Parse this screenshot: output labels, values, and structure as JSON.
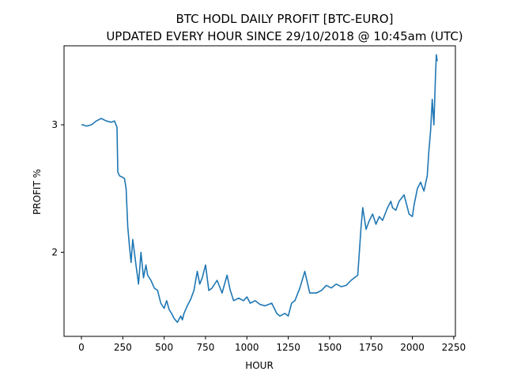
{
  "chart_data": {
    "type": "line",
    "title": "BTC HODL DAILY PROFIT [BTC-EURO]",
    "subtitle": "UPDATED EVERY HOUR SINCE 29/10/2018 @ 10:45am (UTC)",
    "xlabel": "HOUR",
    "ylabel": "PROFIT %",
    "xlim": [
      -105,
      2260
    ],
    "ylim": [
      1.34,
      3.62
    ],
    "xticks": [
      0,
      250,
      500,
      750,
      1000,
      1250,
      1500,
      1750,
      2000,
      2250
    ],
    "xtick_labels": [
      "0",
      "250",
      "500",
      "750",
      "1000",
      "1250",
      "1500",
      "1750",
      "2000",
      "2250"
    ],
    "yticks": [
      2,
      3
    ],
    "ytick_labels": [
      "2",
      "3"
    ],
    "grid": false,
    "line_color": "#1f77b4",
    "series": [
      {
        "x": [
          0,
          10,
          30,
          60,
          90,
          120,
          150,
          180,
          200,
          215,
          220,
          230,
          245,
          260,
          270,
          280,
          290,
          300,
          310,
          320,
          330,
          345,
          360,
          375,
          390,
          400,
          420,
          440,
          460,
          480,
          500,
          515,
          530,
          545,
          560,
          580,
          600,
          610,
          620,
          640,
          660,
          680,
          700,
          715,
          730,
          750,
          770,
          790,
          820,
          850,
          880,
          900,
          920,
          950,
          980,
          1000,
          1020,
          1050,
          1080,
          1110,
          1150,
          1180,
          1200,
          1230,
          1250,
          1270,
          1290,
          1320,
          1350,
          1380,
          1420,
          1450,
          1480,
          1510,
          1540,
          1570,
          1600,
          1630,
          1650,
          1670,
          1690,
          1700,
          1720,
          1740,
          1760,
          1780,
          1800,
          1820,
          1850,
          1870,
          1880,
          1900,
          1920,
          1950,
          1980,
          2000,
          2010,
          2030,
          2050,
          2070,
          2090,
          2100,
          2110,
          2120,
          2130,
          2140,
          2145,
          2150
        ],
        "y": [
          3.0,
          3.0,
          2.99,
          3.0,
          3.03,
          3.05,
          3.03,
          3.02,
          3.03,
          2.98,
          2.63,
          2.6,
          2.59,
          2.58,
          2.5,
          2.2,
          2.05,
          1.92,
          2.1,
          2.0,
          1.9,
          1.75,
          2.0,
          1.8,
          1.9,
          1.82,
          1.78,
          1.72,
          1.7,
          1.6,
          1.56,
          1.62,
          1.55,
          1.52,
          1.48,
          1.45,
          1.5,
          1.47,
          1.52,
          1.58,
          1.63,
          1.7,
          1.85,
          1.75,
          1.8,
          1.9,
          1.7,
          1.72,
          1.78,
          1.68,
          1.82,
          1.7,
          1.62,
          1.64,
          1.62,
          1.65,
          1.6,
          1.62,
          1.59,
          1.58,
          1.6,
          1.52,
          1.5,
          1.52,
          1.5,
          1.6,
          1.62,
          1.72,
          1.85,
          1.68,
          1.68,
          1.7,
          1.74,
          1.72,
          1.75,
          1.73,
          1.74,
          1.78,
          1.8,
          1.82,
          2.2,
          2.35,
          2.18,
          2.25,
          2.3,
          2.22,
          2.28,
          2.25,
          2.35,
          2.4,
          2.35,
          2.33,
          2.4,
          2.45,
          2.3,
          2.28,
          2.37,
          2.5,
          2.55,
          2.48,
          2.6,
          2.8,
          2.95,
          3.2,
          3.0,
          3.4,
          3.55,
          3.5
        ]
      }
    ]
  }
}
